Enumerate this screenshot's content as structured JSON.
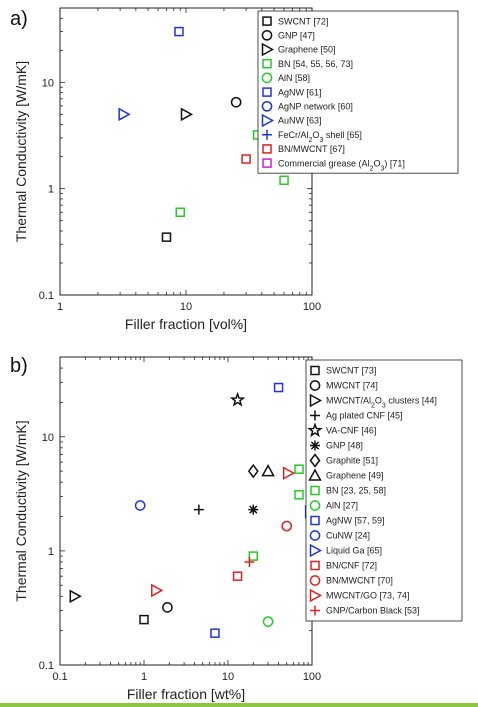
{
  "colors": {
    "black": "#111111",
    "green": "#22cc22",
    "blue": "#2233dd",
    "red": "#e02020",
    "magenta": "#cc22cc",
    "bottom_bar": "#8dc63f"
  },
  "chart_data": [
    {
      "panel": "a)",
      "type": "scatter",
      "xscale": "log",
      "yscale": "log",
      "xlim": [
        1,
        100
      ],
      "ylim": [
        0.1,
        50
      ],
      "x_ticks": [
        "1",
        "10",
        "100"
      ],
      "y_ticks": [
        "0.1",
        "1",
        "10"
      ],
      "xlabel": "Filler fraction [vol%]",
      "ylabel": "Thermal Conductivity [W/mK]",
      "legend_position": "top-right",
      "series": [
        {
          "name": "SWCNT [72]",
          "marker": "square",
          "color": "black",
          "points": [
            [
              7,
              0.35
            ]
          ]
        },
        {
          "name": "GNP [47]",
          "marker": "circle",
          "color": "black",
          "points": [
            [
              25,
              6.5
            ]
          ]
        },
        {
          "name": "Graphene [50]",
          "marker": "triangle-right",
          "color": "black",
          "points": [
            [
              10,
              5
            ]
          ]
        },
        {
          "name": "BN [54, 55, 56, 73]",
          "marker": "square",
          "color": "green",
          "points": [
            [
              9,
              0.6
            ],
            [
              37,
              3.2
            ],
            [
              48,
              4.6
            ],
            [
              60,
              1.2
            ],
            [
              60,
              2.7
            ]
          ]
        },
        {
          "name": "AlN [58]",
          "marker": "circle",
          "color": "green",
          "points": [
            [
              58,
              2.8
            ]
          ]
        },
        {
          "name": "AgNW [61]",
          "marker": "square",
          "color": "blue",
          "points": [
            [
              8.8,
              30
            ]
          ]
        },
        {
          "name": "AgNP network [60]",
          "marker": "circle",
          "color": "blue",
          "points": [
            [
              44,
              27
            ]
          ]
        },
        {
          "name": "AuNW [63]",
          "marker": "triangle-right",
          "color": "blue",
          "points": [
            [
              3.2,
              5
            ]
          ]
        },
        {
          "name_parts": [
            "FeCr/Al",
            "2",
            "O",
            "3",
            " shell [65]"
          ],
          "marker": "plus",
          "color": "blue",
          "points": [
            [
              70,
              4
            ]
          ]
        },
        {
          "name": "BN/MWCNT [67]",
          "marker": "square",
          "color": "red",
          "points": [
            [
              30,
              1.9
            ]
          ]
        },
        {
          "name_parts": [
            "Commercial grease (Al",
            "2",
            "O",
            "3",
            ") [71]"
          ],
          "marker": "square",
          "color": "magenta",
          "points": [
            [
              62,
              2.7
            ]
          ]
        }
      ]
    },
    {
      "panel": "b)",
      "type": "scatter",
      "xscale": "log",
      "yscale": "log",
      "xlim": [
        0.1,
        100
      ],
      "ylim": [
        0.1,
        50
      ],
      "x_ticks": [
        "0.1",
        "1",
        "10",
        "100"
      ],
      "y_ticks": [
        "0.1",
        "1",
        "10"
      ],
      "xlabel": "Filler fraction [wt%]",
      "ylabel": "Thermal Conductivity [W/mK]",
      "legend_position": "top-right",
      "series": [
        {
          "name": "SWCNT [73]",
          "marker": "square",
          "color": "black",
          "points": [
            [
              1,
              0.25
            ]
          ]
        },
        {
          "name": "MWCNT [74]",
          "marker": "circle",
          "color": "black",
          "points": [
            [
              1.9,
              0.32
            ]
          ]
        },
        {
          "name_parts": [
            "MWCNT/Al",
            "2",
            "O",
            "3",
            " clusters [44]"
          ],
          "marker": "triangle-right",
          "color": "black",
          "points": [
            [
              0.15,
              0.4
            ]
          ]
        },
        {
          "name": "Ag plated CNF [45]",
          "marker": "plus",
          "color": "black",
          "points": [
            [
              4.5,
              2.3
            ]
          ]
        },
        {
          "name": "VA-CNF [46]",
          "marker": "star",
          "color": "black",
          "points": [
            [
              13,
              21
            ]
          ]
        },
        {
          "name": "GNP [48]",
          "marker": "asterisk",
          "color": "black",
          "points": [
            [
              20,
              2.3
            ]
          ]
        },
        {
          "name": "Graphite [51]",
          "marker": "diamond",
          "color": "black",
          "points": [
            [
              20,
              5
            ]
          ]
        },
        {
          "name": "Graphene [49]",
          "marker": "triangle-up",
          "color": "black",
          "points": [
            [
              30,
              5
            ]
          ]
        },
        {
          "name": "BN [23, 25, 58]",
          "marker": "square",
          "color": "green",
          "points": [
            [
              20,
              0.9
            ],
            [
              70,
              3.1
            ],
            [
              70,
              5.2
            ]
          ]
        },
        {
          "name": "AlN [27]",
          "marker": "circle",
          "color": "green",
          "points": [
            [
              30,
              0.24
            ]
          ]
        },
        {
          "name": "AgNW [57, 59]",
          "marker": "square",
          "color": "blue",
          "points": [
            [
              7,
              0.19
            ],
            [
              40,
              27
            ]
          ]
        },
        {
          "name": "CuNW [24]",
          "marker": "circle",
          "color": "blue",
          "points": [
            [
              0.9,
              2.5
            ]
          ]
        },
        {
          "name": "Liquid Ga [65]",
          "marker": "triangle-right",
          "color": "blue",
          "points": [
            [
              95,
              2.2
            ]
          ]
        },
        {
          "name": "BN/CNF [72]",
          "marker": "square",
          "color": "red",
          "points": [
            [
              13,
              0.6
            ]
          ]
        },
        {
          "name": "BN/MWCNT [70]",
          "marker": "circle",
          "color": "red",
          "points": [
            [
              50,
              1.65
            ]
          ]
        },
        {
          "name": "MWCNT/GO [73, 74]",
          "marker": "triangle-right",
          "color": "red",
          "points": [
            [
              1.4,
              0.45
            ],
            [
              52,
              4.8
            ]
          ]
        },
        {
          "name": "GNP/Carbon Black [53]",
          "marker": "plus",
          "color": "red",
          "points": [
            [
              18,
              0.8
            ]
          ]
        }
      ]
    }
  ]
}
